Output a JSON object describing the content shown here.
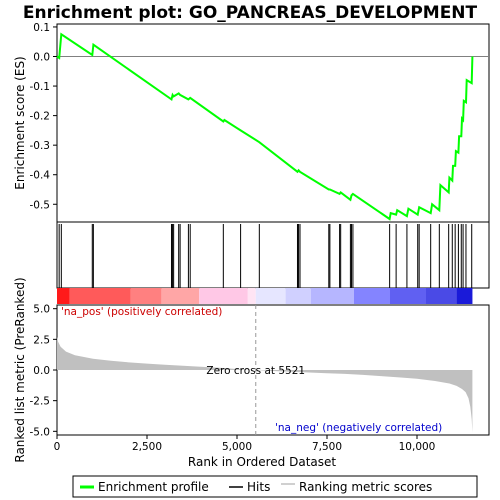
{
  "chart_data": {
    "type": "line",
    "title": "Enrichment plot: GO_PANCREAS_DEVELOPMENT",
    "xlabel": "Rank in Ordered Dataset",
    "xlim": [
      0,
      12000
    ],
    "x_ticks": [
      0,
      2500,
      5000,
      7500,
      10000
    ],
    "x_tick_labels": [
      "0",
      "2,500",
      "5,000",
      "7,500",
      "10,000"
    ],
    "es_panel": {
      "ylabel": "Enrichment score (ES)",
      "ylim": [
        -0.56,
        0.11
      ],
      "y_ticks": [
        0.1,
        0.0,
        -0.1,
        -0.2,
        -0.3,
        -0.4,
        -0.5
      ],
      "y_tick_labels": [
        "0.1",
        "0.0",
        "-0.1",
        "-0.2",
        "-0.3",
        "-0.4",
        "-0.5"
      ],
      "series_color": "#00ff00",
      "points": [
        [
          0,
          0.0
        ],
        [
          60,
          -0.005
        ],
        [
          120,
          0.075
        ],
        [
          980,
          0.005
        ],
        [
          1010,
          0.04
        ],
        [
          3180,
          -0.145
        ],
        [
          3210,
          -0.13
        ],
        [
          3240,
          -0.135
        ],
        [
          3380,
          -0.125
        ],
        [
          3420,
          -0.13
        ],
        [
          3650,
          -0.145
        ],
        [
          3700,
          -0.14
        ],
        [
          4620,
          -0.22
        ],
        [
          4650,
          -0.215
        ],
        [
          5100,
          -0.25
        ],
        [
          5620,
          -0.29
        ],
        [
          6680,
          -0.39
        ],
        [
          6710,
          -0.385
        ],
        [
          6750,
          -0.39
        ],
        [
          7550,
          -0.45
        ],
        [
          7580,
          -0.45
        ],
        [
          7850,
          -0.465
        ],
        [
          7880,
          -0.46
        ],
        [
          8150,
          -0.485
        ],
        [
          8180,
          -0.47
        ],
        [
          8220,
          -0.465
        ],
        [
          9240,
          -0.55
        ],
        [
          9270,
          -0.53
        ],
        [
          9420,
          -0.535
        ],
        [
          9450,
          -0.52
        ],
        [
          9720,
          -0.54
        ],
        [
          9760,
          -0.515
        ],
        [
          10020,
          -0.535
        ],
        [
          10060,
          -0.51
        ],
        [
          10380,
          -0.53
        ],
        [
          10420,
          -0.5
        ],
        [
          10620,
          -0.52
        ],
        [
          10650,
          -0.435
        ],
        [
          10880,
          -0.46
        ],
        [
          10900,
          -0.41
        ],
        [
          10980,
          -0.42
        ],
        [
          11000,
          -0.37
        ],
        [
          11060,
          -0.37
        ],
        [
          11080,
          -0.32
        ],
        [
          11150,
          -0.325
        ],
        [
          11170,
          -0.27
        ],
        [
          11230,
          -0.27
        ],
        [
          11250,
          -0.21
        ],
        [
          11280,
          -0.215
        ],
        [
          11300,
          -0.15
        ],
        [
          11360,
          -0.155
        ],
        [
          11380,
          -0.08
        ],
        [
          11520,
          -0.09
        ],
        [
          11540,
          0.0
        ]
      ]
    },
    "hits": [
      60,
      120,
      980,
      1010,
      3180,
      3210,
      3240,
      3380,
      3420,
      3650,
      3700,
      4620,
      5100,
      5620,
      6680,
      6710,
      6750,
      7550,
      7580,
      7850,
      7880,
      8150,
      8180,
      8220,
      9240,
      9420,
      9720,
      10020,
      10060,
      10380,
      10620,
      10880,
      10980,
      11060,
      11150,
      11230,
      11280,
      11360,
      11520
    ],
    "rank_bar": {
      "segments": [
        {
          "start": 0,
          "end": 350,
          "color": "#ff1a1a"
        },
        {
          "start": 350,
          "end": 2050,
          "color": "#ff5a5a"
        },
        {
          "start": 2050,
          "end": 2900,
          "color": "#ff8080"
        },
        {
          "start": 2900,
          "end": 3950,
          "color": "#ffa6a6"
        },
        {
          "start": 3950,
          "end": 5300,
          "color": "#ffc8e6"
        },
        {
          "start": 5300,
          "end": 5521,
          "color": "#ffe4f4"
        },
        {
          "start": 5521,
          "end": 6350,
          "color": "#e6e6ff"
        },
        {
          "start": 6350,
          "end": 7050,
          "color": "#d0d0ff"
        },
        {
          "start": 7050,
          "end": 8250,
          "color": "#b6b6ff"
        },
        {
          "start": 8250,
          "end": 9250,
          "color": "#8484ff"
        },
        {
          "start": 9250,
          "end": 10250,
          "color": "#6060f2"
        },
        {
          "start": 10250,
          "end": 11100,
          "color": "#4a4ae6"
        },
        {
          "start": 11100,
          "end": 11540,
          "color": "#1a1ad9"
        }
      ]
    },
    "metric_panel": {
      "ylabel": "Ranked list metric (PreRanked)",
      "ylim": [
        -5.3,
        5.3
      ],
      "y_ticks": [
        5.0,
        2.5,
        0.0,
        -2.5,
        -5.0
      ],
      "y_tick_labels": [
        "5.0",
        "2.5",
        "0.0",
        "-2.5",
        "-5.0"
      ],
      "fill_color": "#c0c0c0",
      "curve": [
        [
          0,
          2.7
        ],
        [
          30,
          2.3
        ],
        [
          100,
          1.9
        ],
        [
          250,
          1.5
        ],
        [
          500,
          1.2
        ],
        [
          1000,
          0.92
        ],
        [
          1500,
          0.75
        ],
        [
          2000,
          0.62
        ],
        [
          2500,
          0.52
        ],
        [
          3000,
          0.43
        ],
        [
          3500,
          0.35
        ],
        [
          4000,
          0.27
        ],
        [
          4500,
          0.18
        ],
        [
          5000,
          0.08
        ],
        [
          5521,
          0.0
        ],
        [
          6000,
          -0.08
        ],
        [
          6500,
          -0.14
        ],
        [
          7000,
          -0.2
        ],
        [
          7500,
          -0.26
        ],
        [
          8000,
          -0.32
        ],
        [
          8500,
          -0.4
        ],
        [
          9000,
          -0.5
        ],
        [
          9500,
          -0.6
        ],
        [
          10000,
          -0.72
        ],
        [
          10500,
          -0.9
        ],
        [
          10900,
          -1.1
        ],
        [
          11100,
          -1.3
        ],
        [
          11250,
          -1.55
        ],
        [
          11350,
          -1.8
        ],
        [
          11430,
          -2.3
        ],
        [
          11480,
          -3.0
        ],
        [
          11520,
          -4.0
        ],
        [
          11540,
          -5.1
        ]
      ],
      "zero_cross_rank": 5521,
      "zero_cross_label": "Zero cross at 5521",
      "pos_label": "'na_pos' (positively correlated)",
      "neg_label": "'na_neg' (negatively correlated)",
      "pos_color": "#cc0000",
      "neg_color": "#0000cc"
    },
    "legend": {
      "items": [
        {
          "label": "Enrichment profile",
          "color": "#00ff00"
        },
        {
          "label": "Hits",
          "color": "#000000"
        },
        {
          "label": "Ranking metric scores",
          "color": "#c0c0c0"
        }
      ]
    }
  }
}
